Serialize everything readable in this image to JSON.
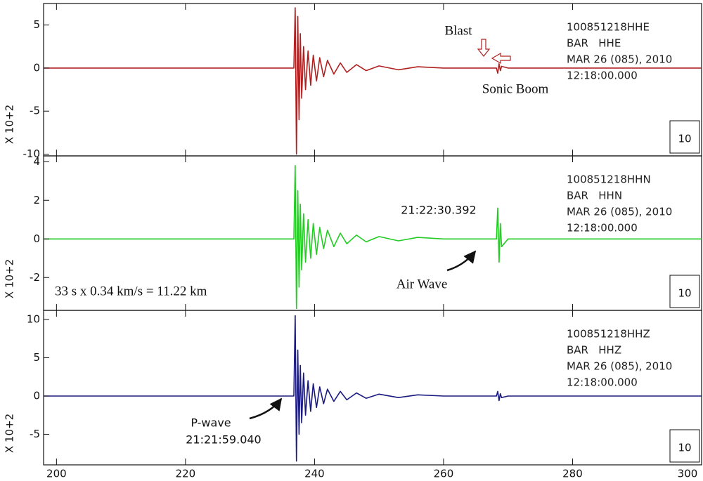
{
  "chart_data": [
    {
      "type": "line",
      "ylim": [
        -10.2,
        7.5
      ],
      "yticks": [
        5,
        0,
        -5,
        -10
      ],
      "y_label": "X 10+2",
      "scale_box": "10",
      "info": [
        "100851218HHE",
        "BAR   HHE",
        "MAR 26 (085), 2010",
        "12:18:00.000"
      ],
      "annotations": [
        "Blast",
        "Sonic Boom"
      ],
      "x": [
        198,
        236.8,
        237.0,
        237.2,
        237.4,
        237.6,
        237.8,
        238.0,
        238.3,
        238.6,
        239.0,
        239.4,
        239.8,
        240.3,
        240.8,
        241.4,
        242.0,
        243,
        244,
        245,
        246.5,
        248,
        250,
        253,
        256,
        260,
        268.2,
        268.4,
        268.6,
        268.8,
        269.0,
        270,
        300
      ],
      "series": [
        {
          "color": "#b02020",
          "values": [
            0,
            0,
            7,
            -10,
            6,
            -6,
            4,
            -3.5,
            2.5,
            -2.5,
            2,
            -2,
            1.5,
            -1.5,
            1.2,
            -1,
            0.9,
            -0.7,
            0.6,
            -0.5,
            0.4,
            -0.3,
            0.25,
            -0.2,
            0.15,
            0,
            0,
            -0.6,
            0.5,
            -0.3,
            0.2,
            0,
            0
          ]
        }
      ]
    },
    {
      "type": "line",
      "ylim": [
        -3.7,
        4.3
      ],
      "yticks": [
        4,
        2,
        0,
        -2
      ],
      "y_label": "X 10+2",
      "scale_box": "10",
      "info": [
        "100851218HHN",
        "BAR   HHN",
        "MAR 26 (085), 2010",
        "12:18:00.000"
      ],
      "annotations": [
        "21:22:30.392",
        "Air Wave",
        "33 s x 0.34 km/s = 11.22 km"
      ],
      "x": [
        198,
        236.8,
        237.0,
        237.2,
        237.4,
        237.6,
        237.8,
        238.0,
        238.3,
        238.6,
        239.0,
        239.4,
        239.8,
        240.3,
        240.8,
        241.4,
        242.0,
        243,
        244,
        245,
        246.5,
        248,
        250,
        253,
        256,
        260,
        268.2,
        268.4,
        268.6,
        268.8,
        269.0,
        270,
        300
      ],
      "series": [
        {
          "color": "#22cc22",
          "values": [
            0,
            0,
            3.8,
            -3.6,
            2.5,
            -2.5,
            1.8,
            -1.6,
            1.3,
            -1.2,
            1,
            -1,
            0.8,
            -0.8,
            0.6,
            -0.5,
            0.45,
            -0.4,
            0.3,
            -0.25,
            0.2,
            -0.15,
            0.12,
            -0.1,
            0.08,
            0,
            0,
            1.6,
            -1.2,
            0.8,
            -0.4,
            0,
            0
          ]
        }
      ]
    },
    {
      "type": "line",
      "ylim": [
        -9.0,
        11.2
      ],
      "yticks": [
        10,
        5,
        0,
        -5
      ],
      "y_label": "X 10+2",
      "scale_box": "10",
      "info": [
        "100851218HHZ",
        "BAR   HHZ",
        "MAR 26 (085), 2010",
        "12:18:00.000"
      ],
      "annotations": [
        "P-wave",
        "21:21:59.040"
      ],
      "xlim": [
        198,
        300
      ],
      "xticks": [
        200,
        220,
        240,
        260,
        280,
        300
      ],
      "x": [
        198,
        236.8,
        237.0,
        237.2,
        237.4,
        237.6,
        237.8,
        238.0,
        238.3,
        238.6,
        239.0,
        239.4,
        239.8,
        240.3,
        240.8,
        241.4,
        242.0,
        243,
        244,
        245,
        246.5,
        248,
        250,
        253,
        256,
        260,
        268.2,
        268.4,
        268.6,
        268.8,
        269.0,
        270,
        300
      ],
      "series": [
        {
          "color": "#1a1a80",
          "values": [
            0,
            0,
            10.5,
            -8.5,
            6,
            -5,
            4,
            -3.5,
            3,
            -2.5,
            2,
            -2,
            1.6,
            -1.5,
            1.2,
            -1,
            0.9,
            -0.7,
            0.6,
            -0.5,
            0.4,
            -0.3,
            0.25,
            -0.2,
            0.15,
            0,
            0,
            0.6,
            -0.6,
            0.3,
            -0.2,
            0,
            0
          ]
        }
      ]
    }
  ]
}
